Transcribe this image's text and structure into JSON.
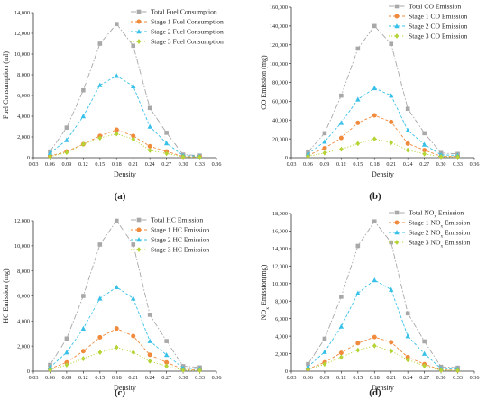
{
  "chart_data": [
    {
      "type": "line",
      "caption": "(a)",
      "xlabel": "Density",
      "ylabel": "Fuel Consumption (ml)",
      "xlim": [
        0.03,
        0.36
      ],
      "ylim": [
        0,
        14000
      ],
      "xticks": [
        "0.03",
        "0.06",
        "0.09",
        "0.12",
        "0.15",
        "0.18",
        "0.21",
        "0.24",
        "0.27",
        "0.30",
        "0.33",
        "0.36"
      ],
      "yticks": [
        "0",
        "2,000",
        "4,000",
        "6,000",
        "8,000",
        "10,000",
        "12,000",
        "14,000"
      ],
      "legend_position": "top-right",
      "x": [
        0.06,
        0.09,
        0.12,
        0.15,
        0.18,
        0.21,
        0.24,
        0.27,
        0.3,
        0.33
      ],
      "series": [
        {
          "name": "Total Fuel Consumption",
          "color": "#a8a8a8",
          "marker": "square",
          "values": [
            600,
            2900,
            6500,
            11000,
            12900,
            10800,
            4800,
            2400,
            300,
            200
          ]
        },
        {
          "name": "Stage 1 Fuel Consumption",
          "color": "#f08a3c",
          "marker": "circle",
          "values": [
            150,
            600,
            1300,
            2100,
            2700,
            2100,
            1100,
            600,
            100,
            80
          ]
        },
        {
          "name": "Stage 2 Fuel Consumption",
          "color": "#38c1e8",
          "marker": "triangle",
          "values": [
            450,
            1700,
            4000,
            7000,
            7900,
            6900,
            3000,
            1400,
            200,
            150
          ]
        },
        {
          "name": "Stage 3 Fuel Consumption",
          "color": "#b4d334",
          "marker": "diamond",
          "values": [
            100,
            500,
            1300,
            1900,
            2300,
            1800,
            700,
            400,
            80,
            50
          ]
        }
      ]
    },
    {
      "type": "line",
      "caption": "(b)",
      "xlabel": "Density",
      "ylabel": "CO Emission (mg)",
      "xlim": [
        0.03,
        0.36
      ],
      "ylim": [
        0,
        160000
      ],
      "xticks": [
        "0.03",
        "0.06",
        "0.09",
        "0.12",
        "0.15",
        "0.18",
        "0.21",
        "0.24",
        "0.27",
        "0.30",
        "0.33",
        "0.36"
      ],
      "yticks": [
        "0",
        "20,000",
        "40,000",
        "60,000",
        "80,000",
        "100,000",
        "120,000",
        "140,000",
        "160,000"
      ],
      "legend_position": "top-right",
      "x": [
        0.06,
        0.09,
        0.12,
        0.15,
        0.18,
        0.21,
        0.24,
        0.27,
        0.3,
        0.33
      ],
      "series": [
        {
          "name": "Total CO Emission",
          "color": "#a8a8a8",
          "marker": "square",
          "values": [
            6000,
            26000,
            66000,
            116000,
            140000,
            121000,
            52000,
            26000,
            5000,
            4000
          ]
        },
        {
          "name": "Stage 1 CO Emission",
          "color": "#f08a3c",
          "marker": "circle",
          "values": [
            2500,
            10000,
            21000,
            37000,
            45000,
            38000,
            15000,
            8000,
            1500,
            1200
          ]
        },
        {
          "name": "Stage 2 CO Emission",
          "color": "#38c1e8",
          "marker": "triangle",
          "values": [
            4000,
            17000,
            37000,
            62000,
            74000,
            66000,
            29000,
            14000,
            3000,
            2500
          ]
        },
        {
          "name": "Stage 3 CO Emission",
          "color": "#b4d334",
          "marker": "diamond",
          "values": [
            1500,
            5000,
            9000,
            15000,
            20000,
            16000,
            8000,
            4000,
            1000,
            800
          ]
        }
      ]
    },
    {
      "type": "line",
      "caption": "(c)",
      "xlabel": "Density",
      "ylabel": "HC Emission (mg)",
      "xlim": [
        0.03,
        0.36
      ],
      "ylim": [
        0,
        12000
      ],
      "xticks": [
        "0.03",
        "0.06",
        "0.09",
        "0.12",
        "0.15",
        "0.18",
        "0.21",
        "0.24",
        "0.27",
        "0.30",
        "0.33",
        "0.36"
      ],
      "yticks": [
        "0",
        "2,000",
        "4,000",
        "6,000",
        "8,000",
        "10,000",
        "12,000"
      ],
      "legend_position": "top-right",
      "x": [
        0.06,
        0.09,
        0.12,
        0.15,
        0.18,
        0.21,
        0.24,
        0.27,
        0.3,
        0.33
      ],
      "series": [
        {
          "name": "Total HC Emission",
          "color": "#a8a8a8",
          "marker": "square",
          "values": [
            500,
            2600,
            6000,
            10100,
            12000,
            10100,
            4500,
            2400,
            400,
            300
          ]
        },
        {
          "name": "Stage 1 HC Emission",
          "color": "#f08a3c",
          "marker": "circle",
          "values": [
            200,
            700,
            1600,
            2700,
            3400,
            2800,
            1300,
            700,
            150,
            100
          ]
        },
        {
          "name": "Stage 2 HC Emission",
          "color": "#38c1e8",
          "marker": "triangle",
          "values": [
            300,
            1500,
            3400,
            5800,
            6700,
            5800,
            2400,
            1300,
            250,
            200
          ]
        },
        {
          "name": "Stage 3 HC Emission",
          "color": "#b4d334",
          "marker": "diamond",
          "values": [
            100,
            500,
            1000,
            1500,
            1900,
            1500,
            800,
            400,
            80,
            60
          ]
        }
      ]
    },
    {
      "type": "line",
      "caption": "(d)",
      "xlabel": "Density",
      "ylabel_parts": [
        "NO",
        "x",
        " Emission(mg)"
      ],
      "xlim": [
        0.03,
        0.36
      ],
      "ylim": [
        0,
        18000
      ],
      "xticks": [
        "0.03",
        "0.06",
        "0.09",
        "0.12",
        "0.15",
        "0.18",
        "0.21",
        "0.24",
        "0.27",
        "0.30",
        "0.33",
        "0.36"
      ],
      "yticks": [
        "0",
        "2,000",
        "4,000",
        "6,000",
        "8,000",
        "10,000",
        "12,000",
        "14,000",
        "16,000",
        "18,000"
      ],
      "legend_position": "top-right",
      "x": [
        0.06,
        0.09,
        0.12,
        0.15,
        0.18,
        0.21,
        0.24,
        0.27,
        0.3,
        0.33
      ],
      "series": [
        {
          "name_parts": [
            "Total NO",
            "x",
            " Emission"
          ],
          "color": "#a8a8a8",
          "marker": "square",
          "values": [
            800,
            3700,
            8500,
            14300,
            17100,
            14700,
            6600,
            3400,
            500,
            400
          ]
        },
        {
          "name_parts": [
            "Stage 1 NO",
            "x",
            " Emission"
          ],
          "color": "#f08a3c",
          "marker": "circle",
          "values": [
            250,
            1000,
            2100,
            3200,
            3900,
            3300,
            1600,
            800,
            150,
            100
          ]
        },
        {
          "name_parts": [
            "Stage 2 NO",
            "x",
            " Emission"
          ],
          "color": "#38c1e8",
          "marker": "triangle",
          "values": [
            500,
            2200,
            5100,
            8900,
            10400,
            9300,
            4000,
            2000,
            300,
            250
          ]
        },
        {
          "name_parts": [
            "Stage 3 NO",
            "x",
            " Emission"
          ],
          "color": "#b4d334",
          "marker": "diamond",
          "values": [
            200,
            800,
            1600,
            2400,
            2900,
            2300,
            1300,
            600,
            100,
            80
          ]
        }
      ]
    }
  ]
}
